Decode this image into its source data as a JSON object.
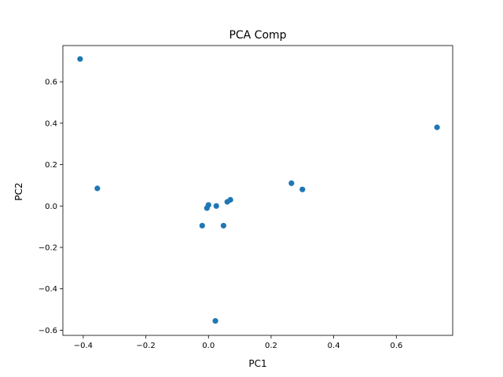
{
  "chart_data": {
    "type": "scatter",
    "title": "PCA Comp",
    "xlabel": "PC1",
    "ylabel": "PC2",
    "xlim": [
      -0.465,
      0.78
    ],
    "ylim": [
      -0.625,
      0.775
    ],
    "xticks": [
      -0.4,
      -0.2,
      0.0,
      0.2,
      0.4,
      0.6
    ],
    "xtick_labels": [
      "−0.4",
      "−0.2",
      "0.0",
      "0.2",
      "0.4",
      "0.6"
    ],
    "yticks": [
      -0.6,
      -0.4,
      -0.2,
      0.0,
      0.2,
      0.4,
      0.6
    ],
    "ytick_labels": [
      "−0.6",
      "−0.4",
      "−0.2",
      "0.0",
      "0.2",
      "0.4",
      "0.6"
    ],
    "grid": false,
    "marker_color": "#1f77b4",
    "points": [
      {
        "x": -0.41,
        "y": 0.71
      },
      {
        "x": -0.355,
        "y": 0.085
      },
      {
        "x": 0.73,
        "y": 0.38
      },
      {
        "x": 0.265,
        "y": 0.11
      },
      {
        "x": 0.3,
        "y": 0.08
      },
      {
        "x": 0.07,
        "y": 0.03
      },
      {
        "x": 0.06,
        "y": 0.02
      },
      {
        "x": 0.025,
        "y": 0.0
      },
      {
        "x": 0.0,
        "y": 0.005
      },
      {
        "x": -0.005,
        "y": -0.01
      },
      {
        "x": -0.02,
        "y": -0.095
      },
      {
        "x": 0.048,
        "y": -0.095
      },
      {
        "x": 0.022,
        "y": -0.555
      }
    ]
  }
}
